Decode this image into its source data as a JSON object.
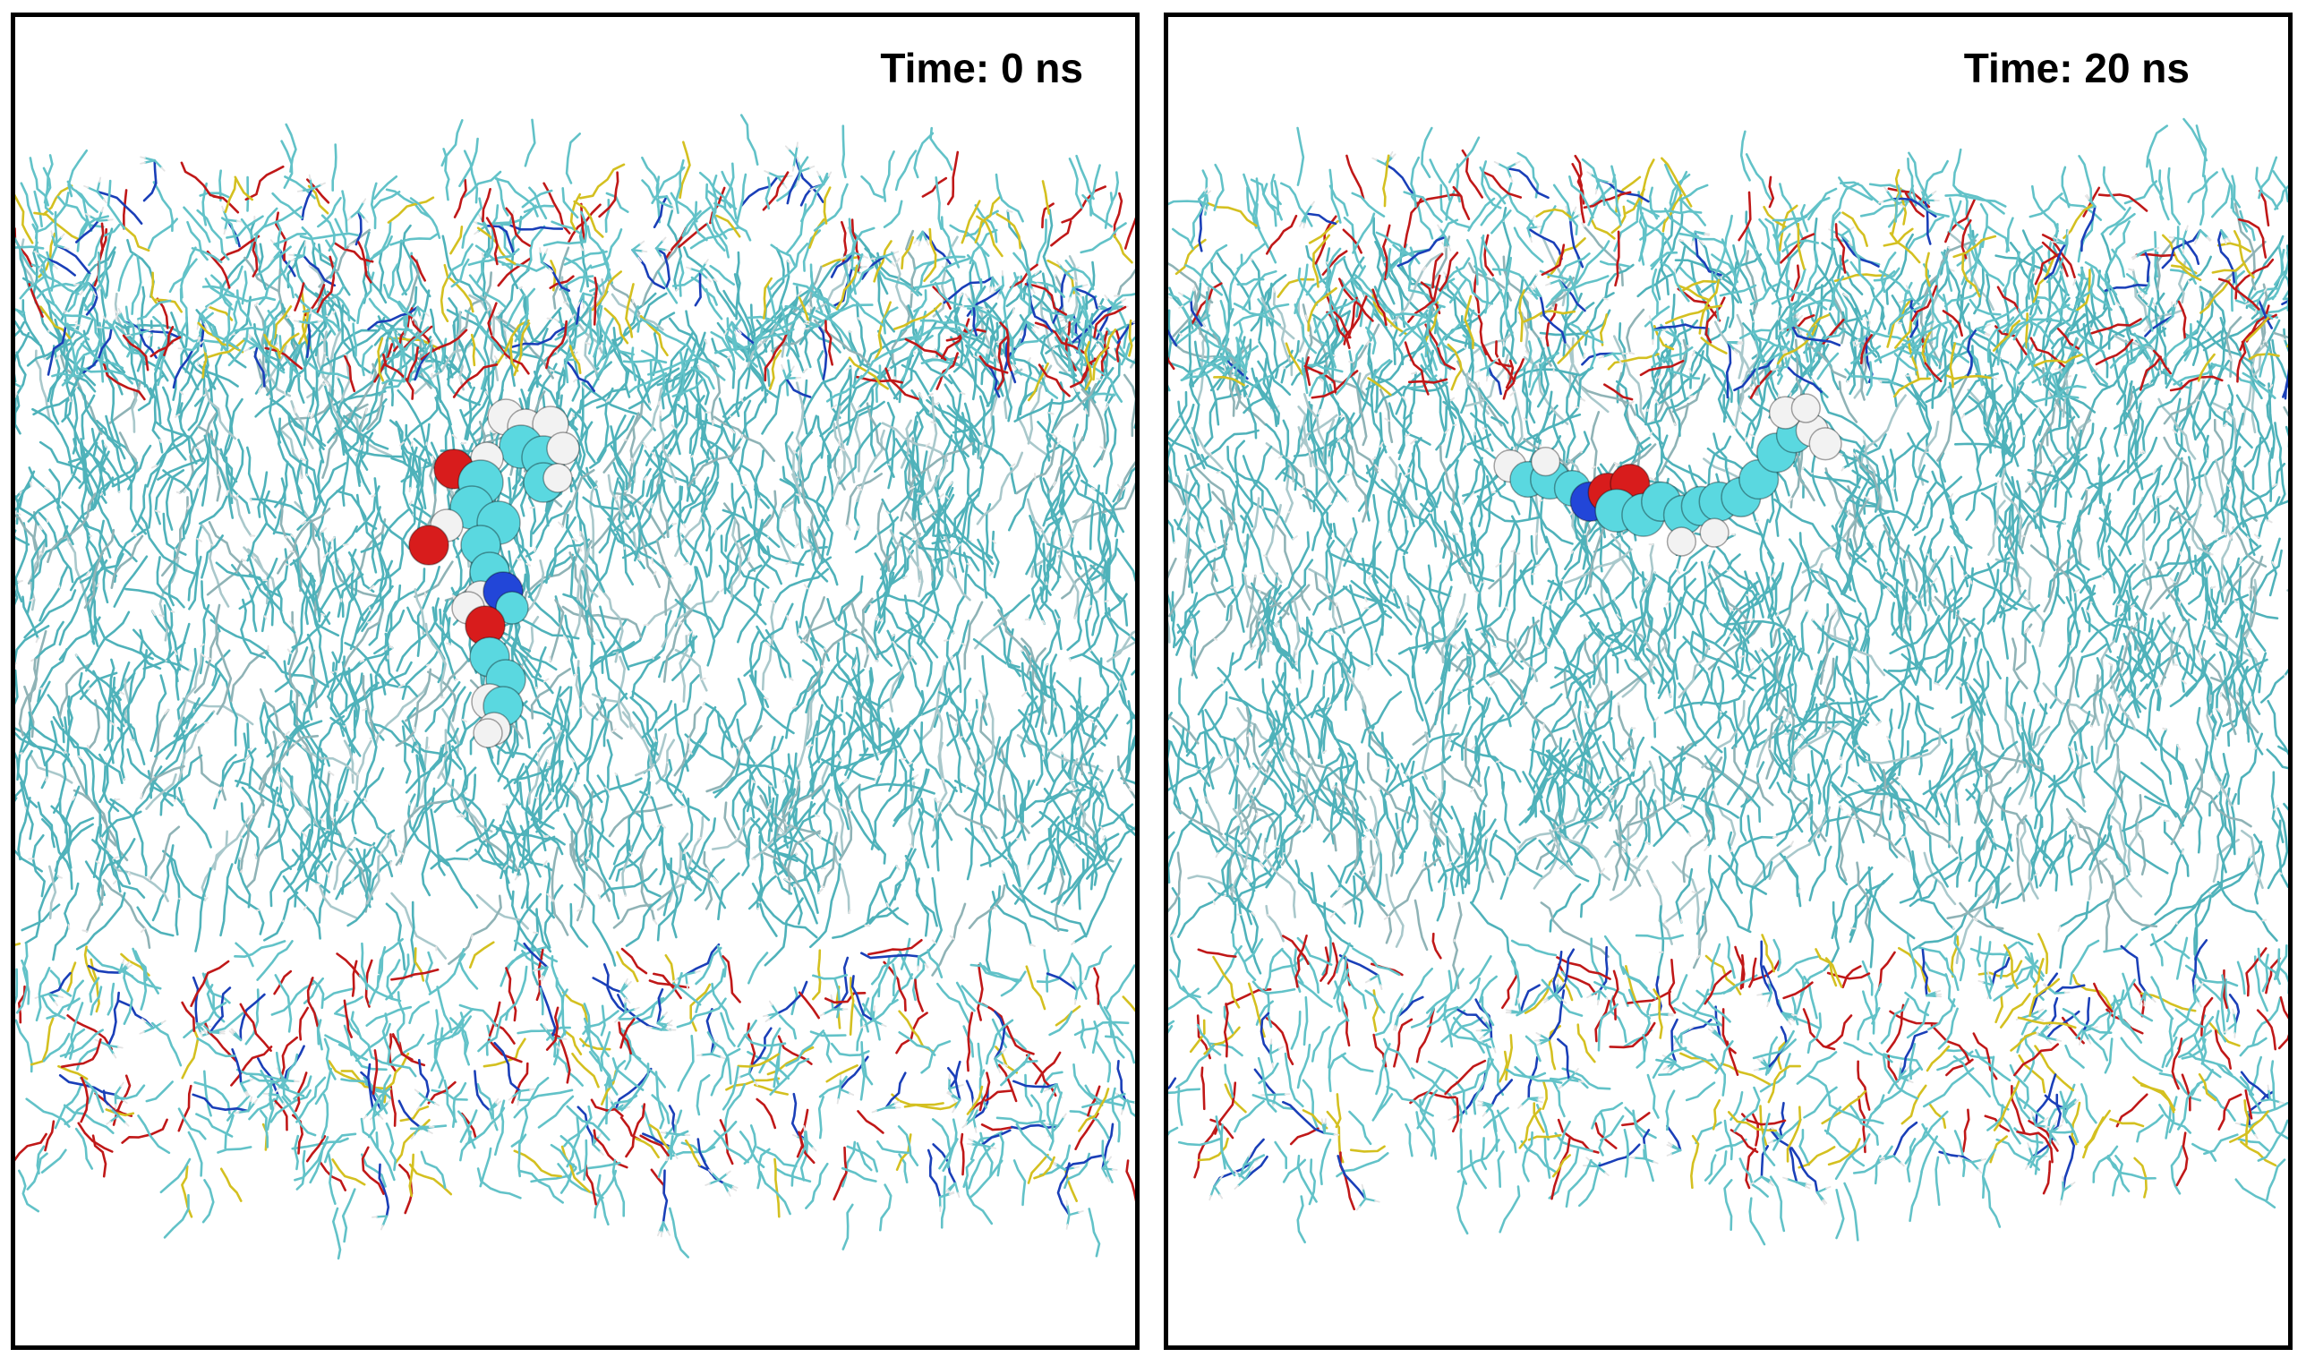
{
  "figure": {
    "panels": [
      {
        "time_label": "Time: 0 ns",
        "molecule_orientation": "vertical",
        "colors": {
          "tail": "#4fb2ba",
          "head_lipid": "#62c2c8",
          "phosphorus": "#d4c020",
          "oxygen": "#c01818",
          "nitrogen": "#1a3fb8",
          "hydrogen": "#e4e4e4",
          "atom_carbon": "#5ad8e0",
          "atom_oxygen": "#d81c1c",
          "atom_nitrogen": "#2246d8",
          "atom_hydrogen": "#f2f2f2"
        }
      },
      {
        "time_label": "Time: 20 ns",
        "molecule_orientation": "horizontal",
        "colors": {
          "tail": "#4fb2ba",
          "head_lipid": "#62c2c8",
          "phosphorus": "#d4c020",
          "oxygen": "#c01818",
          "nitrogen": "#1a3fb8",
          "hydrogen": "#e4e4e4",
          "atom_carbon": "#5ad8e0",
          "atom_oxygen": "#d81c1c",
          "atom_nitrogen": "#2246d8",
          "atom_hydrogen": "#f2f2f2"
        }
      }
    ]
  }
}
